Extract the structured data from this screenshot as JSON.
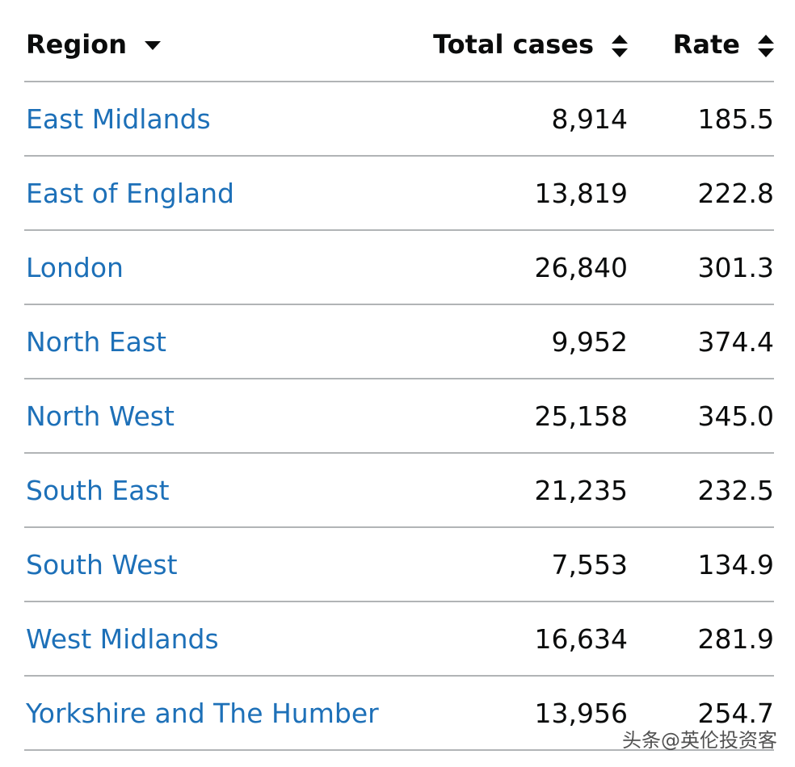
{
  "table": {
    "header": [
      "Region",
      "Total cases",
      "Rate"
    ],
    "rows": [
      [
        "East Midlands",
        "8,914",
        "185.5"
      ],
      [
        "East of England",
        "13,819",
        "222.8"
      ],
      [
        "London",
        "26,840",
        "301.3"
      ],
      [
        "North East",
        "9,952",
        "374.4"
      ],
      [
        "North West",
        "25,158",
        "345.0"
      ],
      [
        "South East",
        "21,235",
        "232.5"
      ],
      [
        "South West",
        "7,553",
        "134.9"
      ],
      [
        "West Midlands",
        "16,634",
        "281.9"
      ],
      [
        "Yorkshire and The Humber",
        "13,956",
        "254.7"
      ]
    ]
  },
  "watermark": "头条@英伦投资客"
}
